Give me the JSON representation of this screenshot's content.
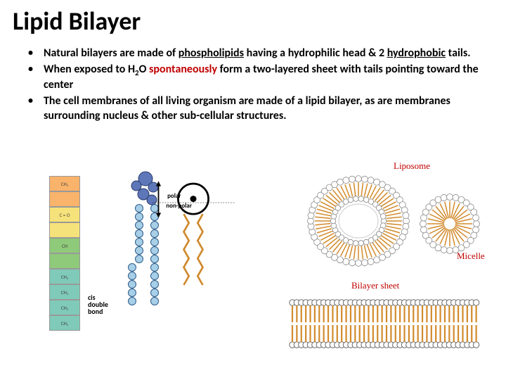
{
  "title": "Lipid Bilayer",
  "bullets": [
    {
      "pre": "Natural bilayers are made of ",
      "u1": "phospholipids",
      "mid1": " having  a hydrophilic head & 2 ",
      "u2": "hydrophobic",
      "post": " tails."
    },
    {
      "pre": "When exposed to H",
      "sub": "2",
      "mid1": "O ",
      "red": "spontaneously",
      "post": "  form a two-layered sheet with tails pointing toward the center"
    },
    {
      "pre": "The  cell membranes of all living organism are made of a lipid bilayer, as are  membranes surrounding  nucleus & other sub-cellular structures."
    }
  ],
  "chem_rows": [
    {
      "bg": "bg-orange",
      "t": "CH₃"
    },
    {
      "bg": "bg-orange",
      "t": ""
    },
    {
      "bg": "bg-yellow",
      "t": "C = O"
    },
    {
      "bg": "bg-yellow",
      "t": ""
    },
    {
      "bg": "bg-green",
      "t": "CH"
    },
    {
      "bg": "bg-green",
      "t": ""
    },
    {
      "bg": "bg-teal",
      "t": "CH₂"
    },
    {
      "bg": "bg-teal",
      "t": "CH₂"
    },
    {
      "bg": "bg-teal",
      "t": "CH₂"
    },
    {
      "bg": "bg-teal",
      "t": "CH₂"
    }
  ],
  "labels": {
    "cis": "cis\ndouble\nbond",
    "polar": "polar",
    "nonpolar": "non-polar",
    "liposome": "Liposome",
    "micelle": "Micelle",
    "bilayer": "Bilayer sheet"
  },
  "colors": {
    "tail": "#d28a2b",
    "head_stroke": "#6b6b6b",
    "red": "#c00000"
  }
}
